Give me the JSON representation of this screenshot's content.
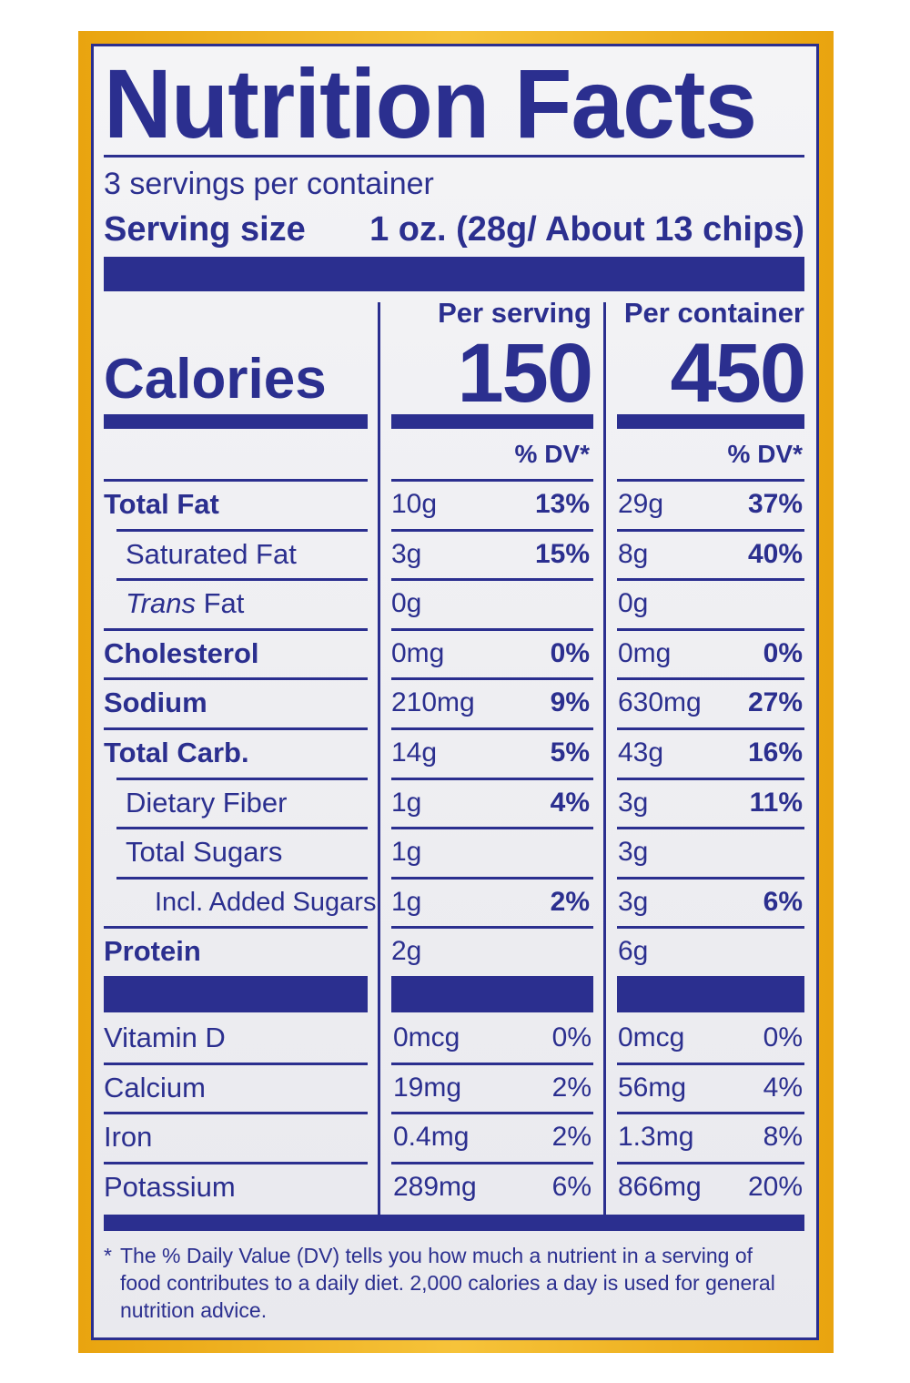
{
  "title": "Nutrition Facts",
  "servings_per_container": "3 servings per container",
  "serving_size_label": "Serving size",
  "serving_size_value": "1 oz. (28g/ About 13 chips)",
  "calories_label": "Calories",
  "columns": [
    {
      "header": "Per serving",
      "calories": "150",
      "dv_header": "% DV*"
    },
    {
      "header": "Per container",
      "calories": "450",
      "dv_header": "% DV*"
    }
  ],
  "nutrients": [
    {
      "label": "Total Fat",
      "bold": true,
      "indent": 0,
      "serving": "10g",
      "serving_dv": "13%",
      "container": "29g",
      "container_dv": "37%"
    },
    {
      "label": "Saturated Fat",
      "bold": false,
      "indent": 1,
      "serving": "3g",
      "serving_dv": "15%",
      "container": "8g",
      "container_dv": "40%"
    },
    {
      "label_italic": "Trans",
      "label": " Fat",
      "bold": false,
      "indent": 1,
      "serving": "0g",
      "serving_dv": "",
      "container": "0g",
      "container_dv": ""
    },
    {
      "label": "Cholesterol",
      "bold": true,
      "indent": 0,
      "serving": "0mg",
      "serving_dv": "0%",
      "container": "0mg",
      "container_dv": "0%"
    },
    {
      "label": "Sodium",
      "bold": true,
      "indent": 0,
      "serving": "210mg",
      "serving_dv": "9%",
      "container": "630mg",
      "container_dv": "27%"
    },
    {
      "label": "Total Carb.",
      "bold": true,
      "indent": 0,
      "serving": "14g",
      "serving_dv": "5%",
      "container": "43g",
      "container_dv": "16%"
    },
    {
      "label": "Dietary Fiber",
      "bold": false,
      "indent": 1,
      "serving": "1g",
      "serving_dv": "4%",
      "container": "3g",
      "container_dv": "11%"
    },
    {
      "label": "Total Sugars",
      "bold": false,
      "indent": 1,
      "serving": "1g",
      "serving_dv": "",
      "container": "3g",
      "container_dv": ""
    },
    {
      "label": "Incl. Added Sugars",
      "bold": false,
      "indent": 2,
      "serving": "1g",
      "serving_dv": "2%",
      "container": "3g",
      "container_dv": "6%"
    },
    {
      "label": "Protein",
      "bold": true,
      "indent": 0,
      "serving": "2g",
      "serving_dv": "",
      "container": "6g",
      "container_dv": ""
    }
  ],
  "vitamins": [
    {
      "label": "Vitamin D",
      "serving": "0mcg",
      "serving_dv": "0%",
      "container": "0mcg",
      "container_dv": "0%"
    },
    {
      "label": "Calcium",
      "serving": "19mg",
      "serving_dv": "2%",
      "container": "56mg",
      "container_dv": "4%"
    },
    {
      "label": "Iron",
      "serving": "0.4mg",
      "serving_dv": "2%",
      "container": "1.3mg",
      "container_dv": "8%"
    },
    {
      "label": "Potassium",
      "serving": "289mg",
      "serving_dv": "6%",
      "container": "866mg",
      "container_dv": "20%"
    }
  ],
  "footnote_marker": "*",
  "footnote_lines": [
    "The % Daily Value (DV) tells you how much a nutrient in a serving of",
    "food contributes to a daily diet. 2,000 calories a day is used for general",
    "nutrition advice."
  ],
  "colors": {
    "ink": "#2b2f8f",
    "border": "#f2b51e",
    "panel": "#efeff2"
  }
}
